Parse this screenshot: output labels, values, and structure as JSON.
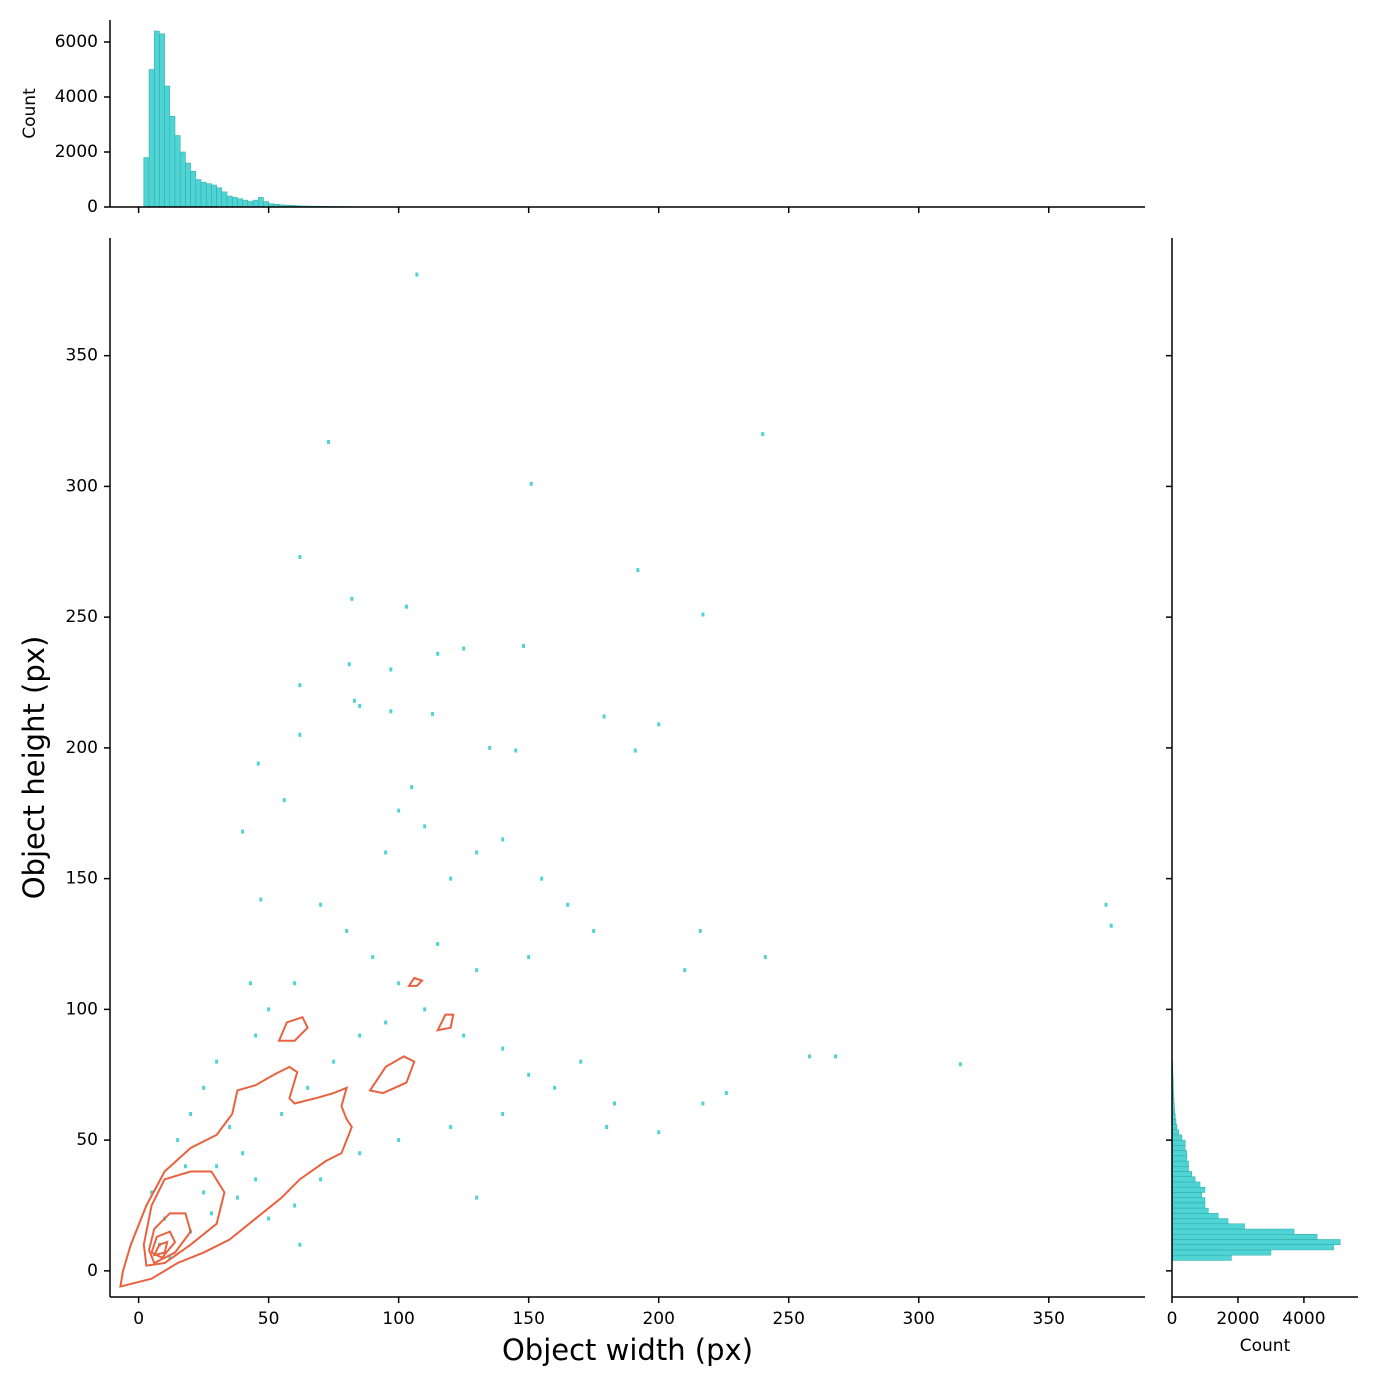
{
  "chart_data": [
    {
      "type": "scatter",
      "xlabel": "Object width (px)",
      "ylabel": "Object height (px)",
      "color": "#4fd3d3",
      "xlim": [
        -11,
        387
      ],
      "ylim": [
        -10,
        395
      ],
      "xticks": [
        0,
        50,
        100,
        150,
        200,
        250,
        300,
        350
      ],
      "yticks": [
        0,
        50,
        100,
        150,
        200,
        250,
        300,
        350
      ],
      "x": [
        107,
        240,
        73,
        151,
        192,
        62,
        103,
        217,
        82,
        148,
        125,
        115,
        81,
        97,
        62,
        83,
        85,
        97,
        113,
        179,
        200,
        62,
        191,
        46,
        145,
        135,
        268,
        258,
        316,
        372,
        374,
        216,
        241,
        210,
        226,
        217,
        180,
        200,
        183,
        130,
        62,
        43,
        47,
        56,
        40,
        100,
        105,
        110,
        130,
        140,
        120,
        95,
        155,
        165,
        175,
        150,
        130,
        115,
        100,
        90,
        80,
        70,
        60,
        50,
        45,
        30,
        25,
        20,
        15,
        35,
        40,
        55,
        65,
        75,
        85,
        95,
        110,
        125,
        140,
        150,
        160,
        170,
        140,
        120,
        100,
        85,
        70,
        60,
        50,
        10,
        8,
        12,
        20,
        25,
        30,
        5,
        18,
        28,
        45,
        38
      ],
      "y": [
        381,
        320,
        317,
        301,
        268,
        273,
        254,
        251,
        257,
        239,
        238,
        236,
        232,
        230,
        224,
        218,
        216,
        214,
        213,
        212,
        209,
        205,
        199,
        194,
        199,
        200,
        82,
        82,
        79,
        140,
        132,
        130,
        120,
        115,
        68,
        64,
        55,
        53,
        64,
        28,
        10,
        110,
        142,
        180,
        168,
        176,
        185,
        170,
        160,
        165,
        150,
        160,
        150,
        140,
        130,
        120,
        115,
        125,
        110,
        120,
        130,
        140,
        110,
        100,
        90,
        80,
        70,
        60,
        50,
        55,
        45,
        60,
        70,
        80,
        90,
        95,
        100,
        90,
        85,
        75,
        70,
        80,
        60,
        55,
        50,
        45,
        35,
        25,
        20,
        20,
        10,
        5,
        15,
        30,
        40,
        30,
        40,
        22,
        35,
        28
      ],
      "contours": {
        "color": "#e8623f",
        "lines": [
          {
            "x": [
              -7,
              -6,
              -3,
              3,
              10,
              20,
              30,
              36,
              38,
              45,
              52,
              58,
              61,
              58,
              60,
              68,
              75,
              80,
              78,
              80,
              82,
              78,
              72,
              62,
              55,
              45,
              35,
              25,
              15,
              5
            ],
            "y": [
              -6,
              0,
              10,
              25,
              38,
              47,
              52,
              60,
              69,
              71,
              75,
              78,
              76,
              66,
              64,
              66,
              68,
              70,
              63,
              58,
              55,
              45,
              42,
              35,
              28,
              20,
              12,
              7,
              3,
              -3
            ]
          },
          {
            "x": [
              2,
              5,
              10,
              20,
              28,
              33,
              30,
              20,
              10,
              3
            ],
            "y": [
              10,
              25,
              35,
              38,
              38,
              30,
              18,
              10,
              3,
              2
            ]
          },
          {
            "x": [
              4,
              6,
              12,
              18,
              20,
              14,
              6
            ],
            "y": [
              8,
              16,
              22,
              22,
              15,
              7,
              3
            ]
          },
          {
            "x": [
              5,
              7,
              12,
              14,
              9
            ],
            "y": [
              7,
              13,
              15,
              11,
              5
            ]
          },
          {
            "x": [
              6,
              8,
              11,
              10
            ],
            "y": [
              6,
              10,
              11,
              7
            ]
          },
          {
            "x": [
              54,
              57,
              63,
              65,
              60
            ],
            "y": [
              88,
              95,
              97,
              93,
              88
            ]
          },
          {
            "x": [
              104,
              106,
              109,
              107
            ],
            "y": [
              109,
              112,
              111,
              109
            ]
          },
          {
            "x": [
              115,
              118,
              121,
              120
            ],
            "y": [
              92,
              98,
              98,
              93
            ]
          },
          {
            "x": [
              89,
              95,
              102,
              106,
              103,
              94
            ],
            "y": [
              69,
              78,
              82,
              80,
              72,
              68
            ]
          }
        ]
      }
    },
    {
      "type": "histogram",
      "orientation": "vertical",
      "ylabel": "Count",
      "color": "#4fd3d3",
      "xlim": [
        -11,
        387
      ],
      "ylim": [
        0,
        6800
      ],
      "yticks": [
        0,
        2000,
        4000,
        6000
      ],
      "bins": [
        2,
        4,
        6,
        8,
        10,
        12,
        14,
        16,
        18,
        20,
        22,
        24,
        26,
        28,
        30,
        32,
        34,
        36,
        38,
        40,
        42,
        44,
        46,
        48,
        50,
        52,
        54,
        56,
        58,
        60,
        62,
        64,
        66,
        68,
        70,
        72,
        74,
        76,
        78,
        80,
        82
      ],
      "counts": [
        1800,
        5000,
        6400,
        6300,
        4400,
        3300,
        2600,
        2000,
        1600,
        1300,
        1000,
        900,
        850,
        800,
        700,
        550,
        400,
        350,
        300,
        250,
        200,
        250,
        350,
        200,
        120,
        100,
        80,
        70,
        60,
        50,
        40,
        35,
        30,
        30,
        25,
        25,
        20,
        20,
        15,
        15
      ]
    },
    {
      "type": "histogram",
      "orientation": "horizontal",
      "xlabel": "Count",
      "color": "#4fd3d3",
      "xlim": [
        0,
        5640
      ],
      "xticks": [
        0,
        2000,
        4000
      ],
      "ylim": [
        -10,
        395
      ],
      "bins": [
        4,
        6,
        8,
        10,
        12,
        14,
        16,
        18,
        20,
        22,
        24,
        26,
        28,
        30,
        32,
        34,
        36,
        38,
        40,
        42,
        44,
        46,
        48,
        50,
        52,
        54,
        56,
        58,
        60,
        62,
        64,
        66,
        68,
        70,
        72,
        74,
        76,
        78,
        80
      ],
      "counts": [
        1800,
        3000,
        4900,
        5100,
        4400,
        3700,
        2200,
        1700,
        1400,
        1100,
        1000,
        1000,
        900,
        1000,
        850,
        700,
        600,
        500,
        500,
        450,
        450,
        400,
        400,
        300,
        200,
        150,
        120,
        100,
        80,
        70,
        60,
        50,
        45,
        40,
        35,
        30,
        25,
        20
      ]
    }
  ]
}
